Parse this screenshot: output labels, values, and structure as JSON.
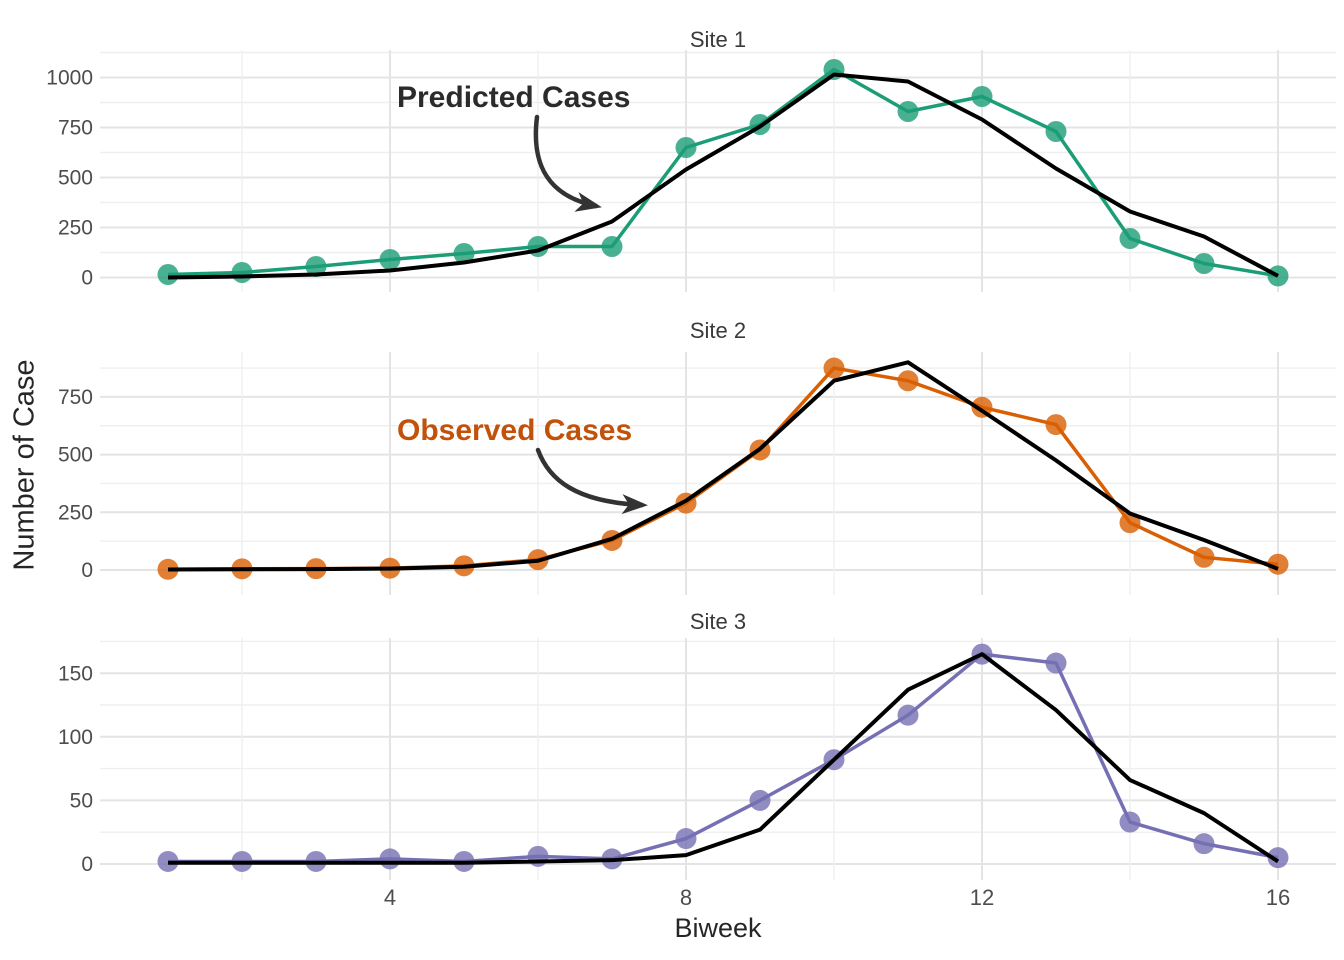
{
  "figure": {
    "background": "#ffffff",
    "y_axis_label": "Number of Case",
    "x_axis_label": "Biweek",
    "x_ticks": [
      4,
      8,
      12,
      16
    ],
    "x_minor_ticks": [
      2,
      6,
      10,
      14
    ],
    "annotations": [
      {
        "id": "predicted",
        "label": "Predicted Cases",
        "color": "#2b2b2b"
      },
      {
        "id": "observed",
        "label": "Observed Cases",
        "color": "#c2510a"
      }
    ],
    "colors": {
      "site1_observed": "#1B9E77",
      "site2_observed": "#D95F02",
      "site3_observed": "#7570B3",
      "predicted_line": "#000000",
      "grid_major": "#e4e4e4",
      "grid_minor": "#efefef",
      "tick_text": "#4d4d4d"
    }
  },
  "chart_data": [
    {
      "type": "line",
      "title": "Site 1",
      "xlabel": "Biweek",
      "ylabel": "Number of Case",
      "x": [
        1,
        2,
        3,
        4,
        5,
        6,
        7,
        8,
        9,
        10,
        11,
        12,
        13,
        14,
        15,
        16
      ],
      "yticks": [
        0,
        250,
        500,
        750,
        1000
      ],
      "yminor": [
        125,
        375,
        625,
        875,
        1125
      ],
      "ylim": [
        0,
        1125
      ],
      "grid": true,
      "legend": "none",
      "series": [
        {
          "name": "Observed Cases",
          "style": "points-and-line",
          "color": "#1B9E77",
          "values": [
            15,
            25,
            55,
            90,
            120,
            155,
            155,
            650,
            765,
            1040,
            830,
            905,
            730,
            195,
            70,
            8
          ]
        },
        {
          "name": "Predicted Cases",
          "style": "line",
          "color": "#000000",
          "values": [
            0,
            5,
            15,
            35,
            75,
            135,
            280,
            540,
            755,
            1015,
            980,
            790,
            545,
            330,
            205,
            8
          ]
        }
      ]
    },
    {
      "type": "line",
      "title": "Site 2",
      "xlabel": "Biweek",
      "ylabel": "Number of Case",
      "x": [
        1,
        2,
        3,
        4,
        5,
        6,
        7,
        8,
        9,
        10,
        11,
        12,
        13,
        14,
        15,
        16
      ],
      "yticks": [
        0,
        250,
        500,
        750
      ],
      "yminor": [
        125,
        375,
        625,
        875
      ],
      "ylim": [
        0,
        940
      ],
      "grid": true,
      "legend": "none",
      "series": [
        {
          "name": "Observed Cases",
          "style": "points-and-line",
          "color": "#D95F02",
          "values": [
            3,
            5,
            6,
            8,
            18,
            45,
            128,
            290,
            520,
            875,
            820,
            705,
            630,
            205,
            55,
            25
          ]
        },
        {
          "name": "Predicted Cases",
          "style": "line",
          "color": "#000000",
          "values": [
            2,
            3,
            4,
            6,
            14,
            40,
            135,
            300,
            525,
            820,
            900,
            690,
            475,
            245,
            130,
            5
          ]
        }
      ]
    },
    {
      "type": "line",
      "title": "Site 3",
      "xlabel": "Biweek",
      "ylabel": "Number of Case",
      "x": [
        1,
        2,
        3,
        4,
        5,
        6,
        7,
        8,
        9,
        10,
        11,
        12,
        13,
        14,
        15,
        16
      ],
      "yticks": [
        0,
        50,
        100,
        150
      ],
      "yminor": [
        25,
        75,
        125,
        175
      ],
      "ylim": [
        0,
        190
      ],
      "grid": true,
      "legend": "none",
      "series": [
        {
          "name": "Observed Cases",
          "style": "points-and-line",
          "color": "#7570B3",
          "values": [
            2,
            2,
            2,
            4,
            2,
            6,
            4,
            20,
            50,
            82,
            117,
            165,
            158,
            33,
            16,
            5
          ]
        },
        {
          "name": "Predicted Cases",
          "style": "line",
          "color": "#000000",
          "values": [
            1,
            1,
            1,
            1,
            1,
            2,
            3,
            7,
            27,
            82,
            137,
            165,
            121,
            66,
            40,
            2
          ]
        }
      ]
    }
  ]
}
